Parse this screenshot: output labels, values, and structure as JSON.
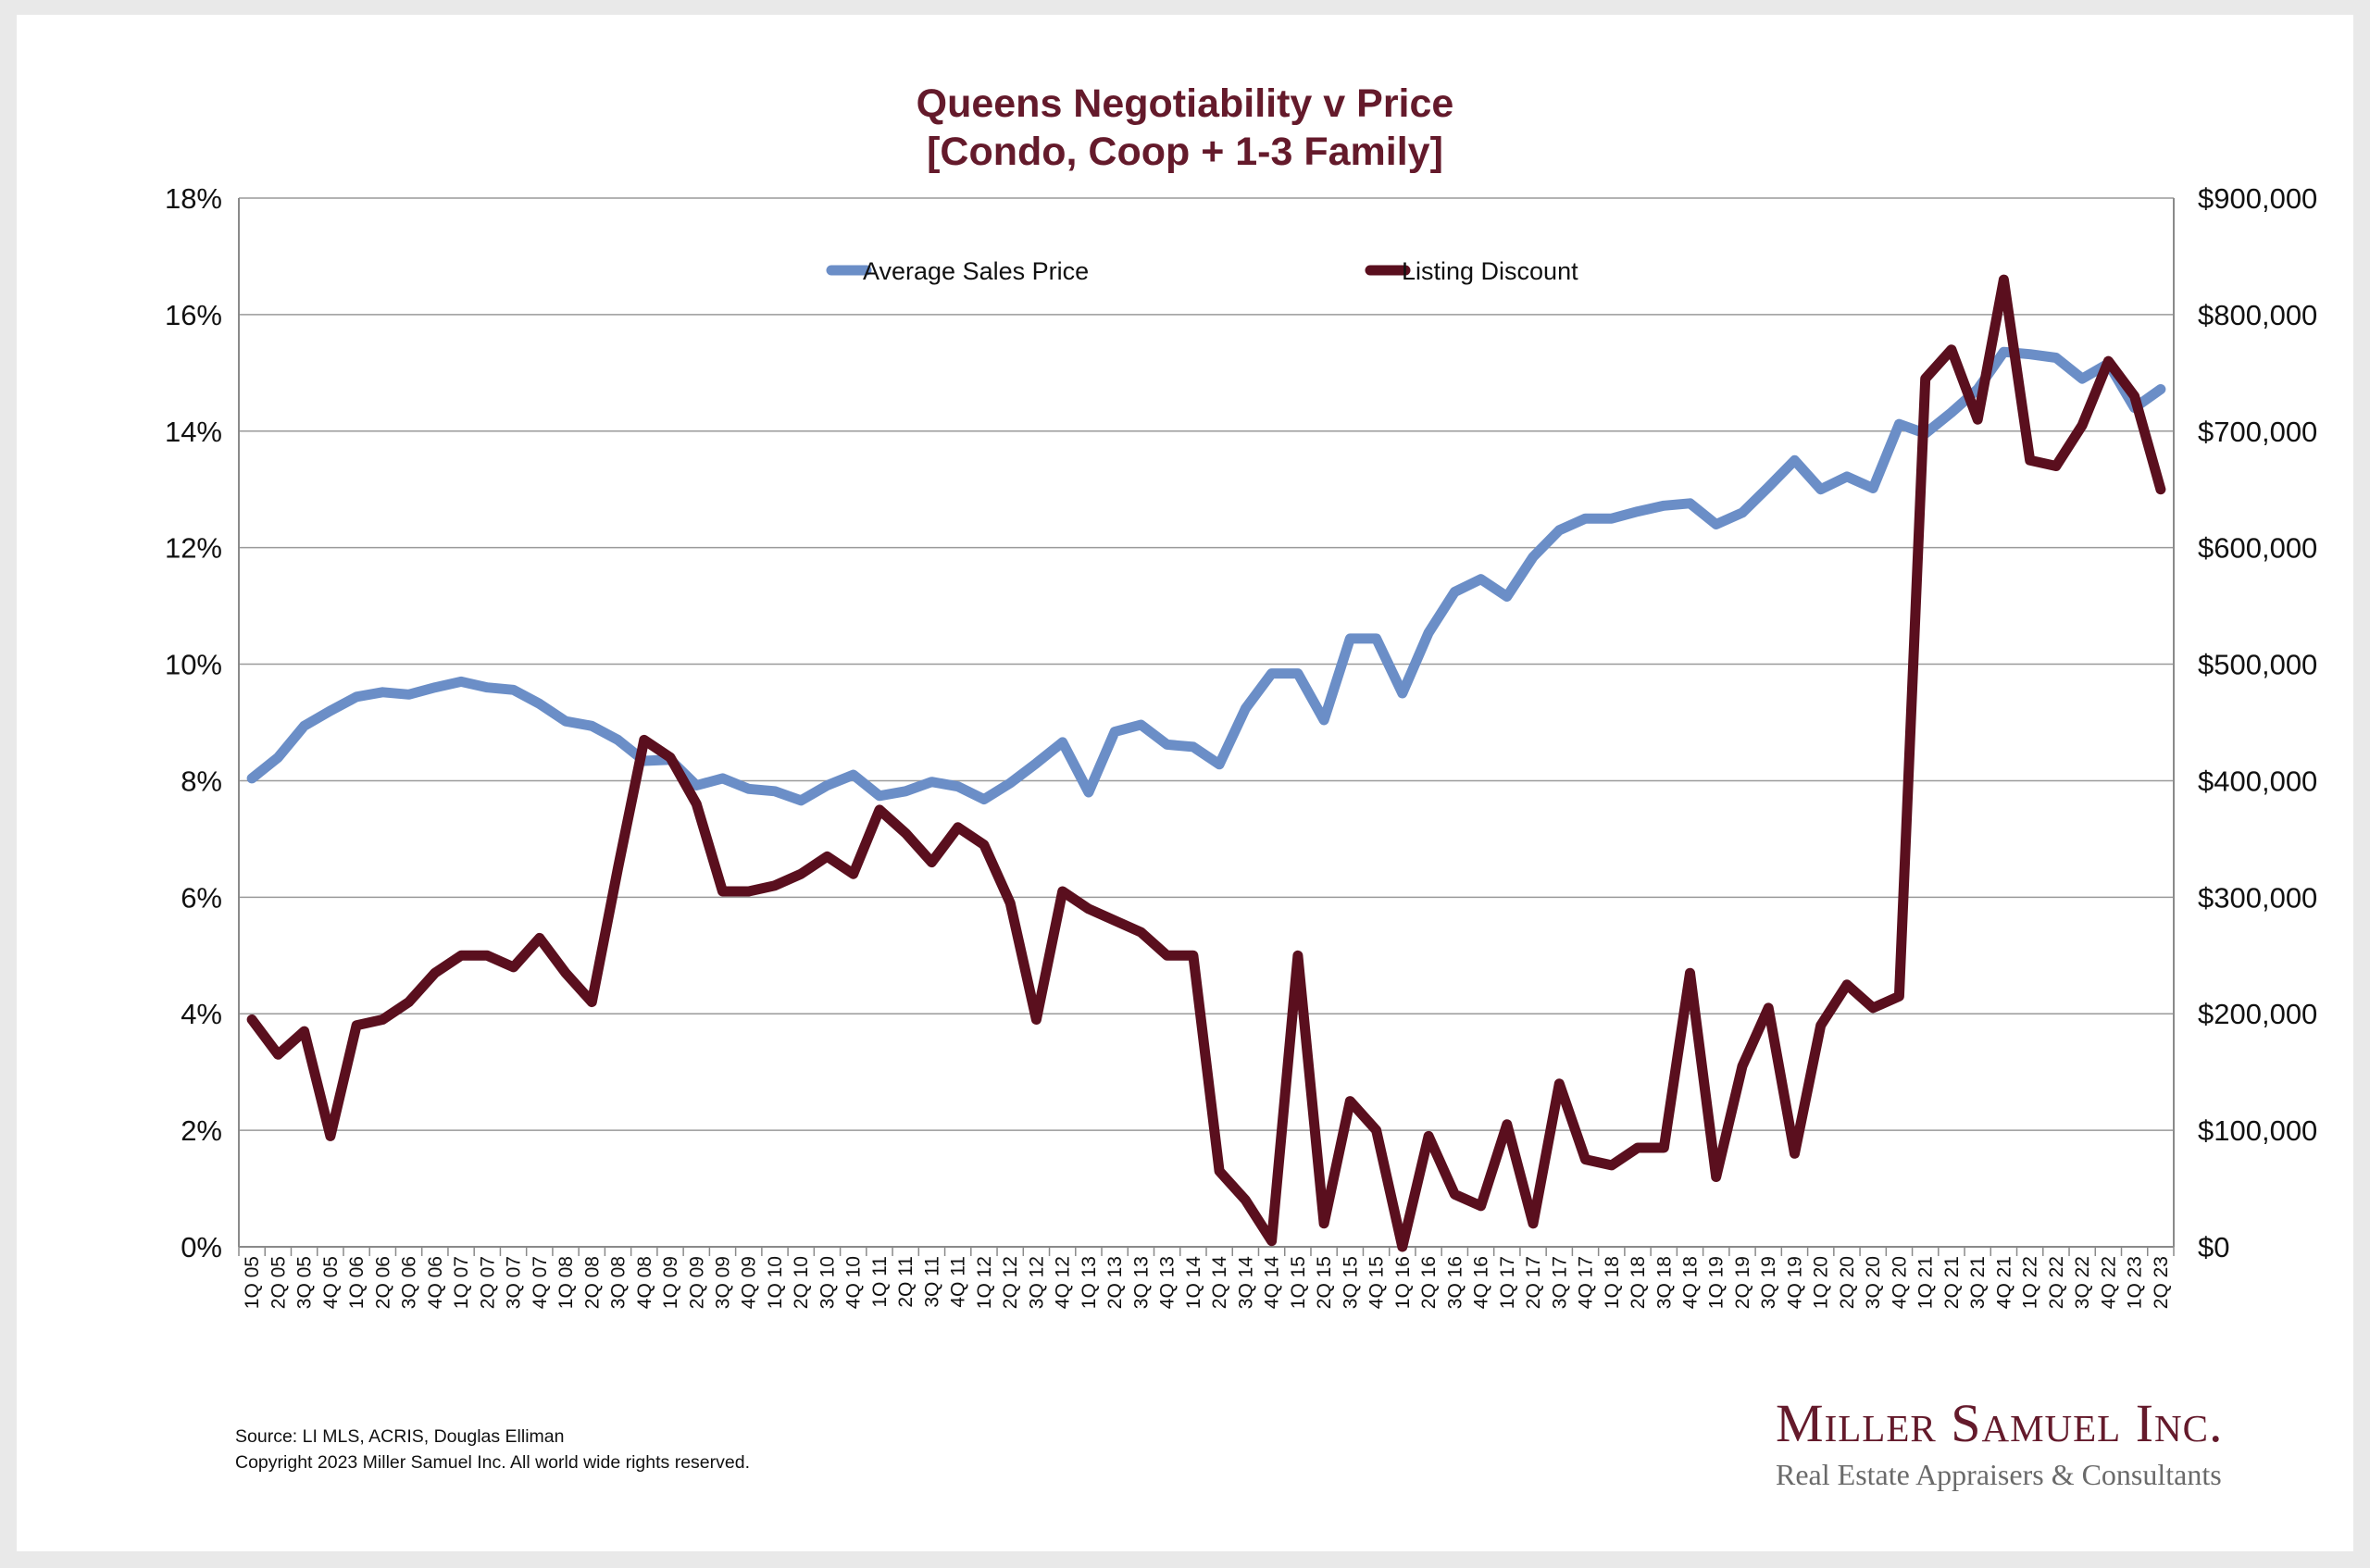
{
  "title_line1": "Queens Negotiability v Price",
  "title_line2": "[Condo, Coop + 1-3 Family]",
  "source": "Source: LI MLS, ACRIS, Douglas Elliman",
  "copyright": "Copyright 2023 Miller Samuel Inc.  All world wide rights reserved.",
  "logo": {
    "name": "Miller Samuel Inc.",
    "tagline": "Real Estate Appraisers & Consultants"
  },
  "colors": {
    "title": "#641a2b",
    "price_line": "#6b8ec7",
    "discount_line": "#5a0f1e",
    "grid": "#9a9a9a"
  },
  "chart_data": {
    "type": "line",
    "legend_position": "top-center",
    "grid": true,
    "categories": [
      "1Q 05",
      "2Q 05",
      "3Q 05",
      "4Q 05",
      "1Q 06",
      "2Q 06",
      "3Q 06",
      "4Q 06",
      "1Q 07",
      "2Q 07",
      "3Q 07",
      "4Q 07",
      "1Q 08",
      "2Q 08",
      "3Q 08",
      "4Q 08",
      "1Q 09",
      "2Q 09",
      "3Q 09",
      "4Q 09",
      "1Q 10",
      "2Q 10",
      "3Q 10",
      "4Q 10",
      "1Q 11",
      "2Q 11",
      "3Q 11",
      "4Q 11",
      "1Q 12",
      "2Q 12",
      "3Q 12",
      "4Q 12",
      "1Q 13",
      "2Q 13",
      "3Q 13",
      "4Q 13",
      "1Q 14",
      "2Q 14",
      "3Q 14",
      "4Q 14",
      "1Q 15",
      "2Q 15",
      "3Q 15",
      "4Q 15",
      "1Q 16",
      "2Q 16",
      "3Q 16",
      "4Q 16",
      "1Q 17",
      "2Q 17",
      "3Q 17",
      "4Q 17",
      "1Q 18",
      "2Q 18",
      "3Q 18",
      "4Q 18",
      "1Q 19",
      "2Q 19",
      "3Q 19",
      "4Q 19",
      "1Q 20",
      "2Q 20",
      "3Q 20",
      "4Q 20",
      "1Q 21",
      "2Q 21",
      "3Q 21",
      "4Q 21",
      "1Q 22",
      "2Q 22",
      "3Q 22",
      "4Q 22",
      "1Q 23",
      "2Q 23"
    ],
    "y_left": {
      "ticks": [
        "0%",
        "2%",
        "4%",
        "6%",
        "8%",
        "10%",
        "12%",
        "14%",
        "16%",
        "18%"
      ],
      "range": [
        0,
        18
      ]
    },
    "y_right": {
      "ticks": [
        "$0",
        "$100,000",
        "$200,000",
        "$300,000",
        "$400,000",
        "$500,000",
        "$600,000",
        "$700,000",
        "$800,000",
        "$900,000"
      ],
      "range": [
        0,
        900000
      ]
    },
    "series": [
      {
        "name": "Average Sales Price",
        "axis": "right",
        "values": [
          402000,
          420000,
          447000,
          460000,
          472000,
          476000,
          474000,
          480000,
          485000,
          480000,
          478000,
          466000,
          451000,
          447000,
          435000,
          417000,
          418000,
          396000,
          402000,
          393000,
          391000,
          383000,
          396000,
          405000,
          387000,
          391000,
          399000,
          395000,
          384000,
          398000,
          415000,
          433000,
          390000,
          442000,
          448000,
          431000,
          429000,
          414000,
          462000,
          492000,
          492000,
          452000,
          522000,
          522000,
          475000,
          527000,
          562000,
          573000,
          558000,
          592000,
          615000,
          625000,
          625000,
          631000,
          636000,
          638000,
          620000,
          630000,
          652000,
          675000,
          650000,
          661000,
          651000,
          706000,
          698000,
          716000,
          736000,
          768000,
          766000,
          763000,
          745000,
          758000,
          720000,
          736000
        ]
      },
      {
        "name": "Listing Discount",
        "axis": "left",
        "values": [
          3.9,
          3.3,
          3.7,
          1.9,
          3.8,
          3.9,
          4.2,
          4.7,
          5.0,
          5.0,
          4.8,
          5.3,
          4.7,
          4.2,
          6.5,
          8.7,
          8.4,
          7.6,
          6.1,
          6.1,
          6.2,
          6.4,
          6.7,
          6.4,
          7.5,
          7.1,
          6.6,
          7.2,
          6.9,
          5.9,
          3.9,
          6.1,
          5.8,
          5.6,
          5.4,
          5.0,
          5.0,
          1.3,
          0.8,
          0.1,
          5.0,
          0.4,
          2.5,
          2.0,
          0.0,
          1.9,
          0.9,
          0.7,
          2.1,
          0.4,
          2.8,
          1.5,
          1.4,
          1.7,
          1.7,
          4.7,
          1.2,
          3.1,
          4.1,
          1.6,
          3.8,
          4.5,
          4.1,
          4.3,
          14.9,
          15.4,
          14.2,
          16.6,
          13.5,
          13.4,
          14.1,
          15.2,
          14.6,
          13.0
        ]
      }
    ]
  }
}
